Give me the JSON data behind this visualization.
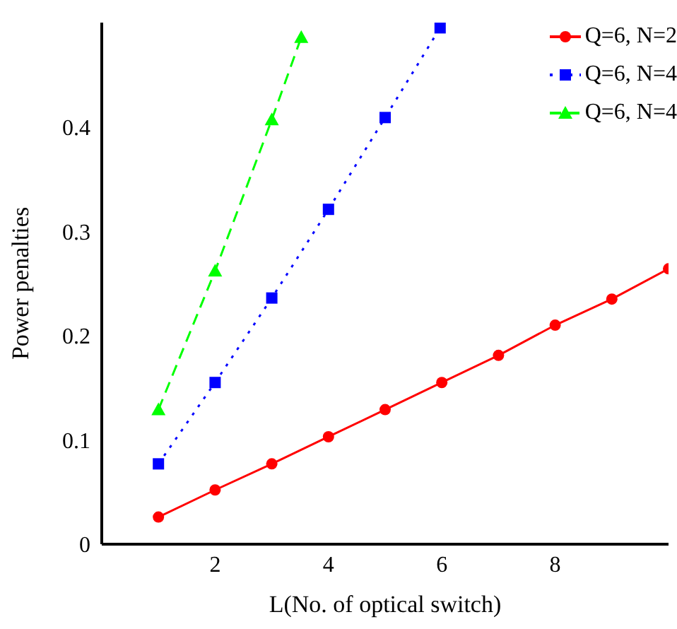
{
  "chart_data": {
    "type": "line",
    "xlabel": "L(No. of optical switch)",
    "ylabel": "Power penalties",
    "xlim": [
      0,
      10
    ],
    "xticks": [
      2,
      4,
      6,
      8
    ],
    "ylim": [
      0,
      0.5
    ],
    "yticks": [
      0,
      0.1,
      0.2,
      0.3,
      0.4
    ],
    "grid": false,
    "legend": "top right",
    "series": [
      {
        "name": "Q=6, N=2",
        "color": "#ff0000",
        "marker": "circle",
        "line_style": "solid",
        "x": [
          1,
          2,
          3,
          4,
          5,
          6,
          7,
          8,
          9,
          10
        ],
        "values": [
          0.026,
          0.052,
          0.077,
          0.103,
          0.129,
          0.155,
          0.181,
          0.21,
          0.235,
          0.264
        ]
      },
      {
        "name": "Q=6, N=4",
        "color": "#0000ff",
        "marker": "square",
        "line_style": "dotted",
        "x": [
          1,
          2,
          3,
          4,
          5,
          5.97
        ],
        "values": [
          0.077,
          0.155,
          0.236,
          0.321,
          0.409,
          0.495
        ]
      },
      {
        "name": "Q=6, N=4",
        "color": "#00ff00",
        "marker": "triangle",
        "line_style": "dashed",
        "x": [
          1,
          2,
          3,
          3.52
        ],
        "values": [
          0.129,
          0.262,
          0.407,
          0.486
        ]
      }
    ]
  }
}
